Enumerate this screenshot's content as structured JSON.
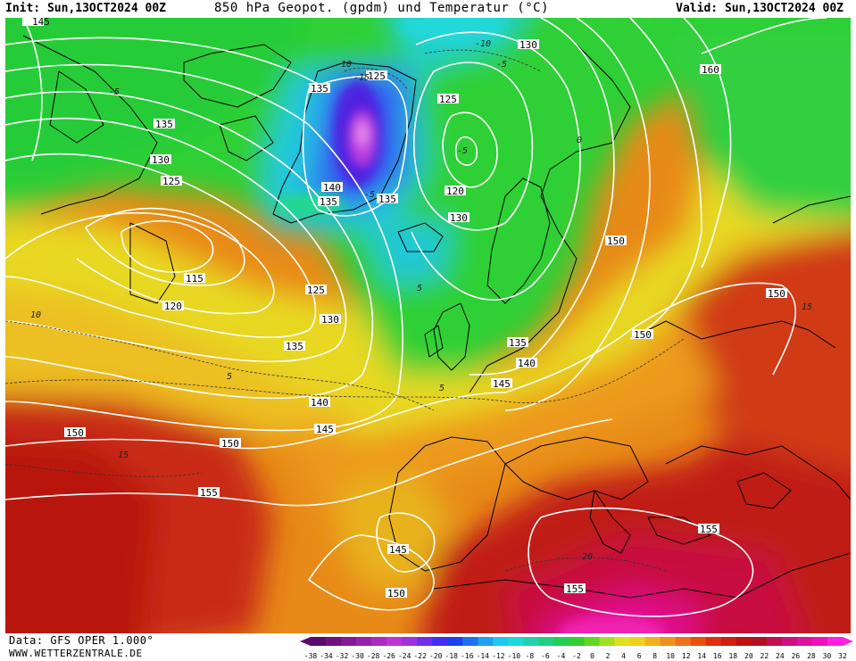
{
  "header": {
    "init": "Init: Sun,13OCT2024 00Z",
    "title": "850 hPa Geopot. (gpdm) und Temperatur (°C)",
    "valid": "Valid: Sun,13OCT2024 00Z"
  },
  "footer": {
    "data_source": "Data: GFS OPER 1.000°",
    "website": "WWW.WETTERZENTRALE.DE"
  },
  "colors": {
    "ocean_green": "#22cc33",
    "land_yellow": "#eedd22",
    "orange": "#f0a020",
    "dark_orange": "#e06010",
    "red": "#c02010",
    "magenta": "#ee1188",
    "cyan": "#22ccdd",
    "blue": "#3344ee"
  },
  "legend": {
    "ticks": [
      "-38",
      "-34",
      "-32",
      "-30",
      "-28",
      "-26",
      "-24",
      "-22",
      "-20",
      "-18",
      "-16",
      "-14",
      "-12",
      "-10",
      "-8",
      "-6",
      "-4",
      "-2",
      "0",
      "2",
      "4",
      "6",
      "8",
      "10",
      "12",
      "14",
      "16",
      "18",
      "20",
      "22",
      "24",
      "26",
      "28",
      "30",
      "32"
    ],
    "colors": [
      "#5a0a6a",
      "#6e1280",
      "#821a96",
      "#9622ac",
      "#aa2ac2",
      "#be32d8",
      "#a030e0",
      "#7030e8",
      "#4030f0",
      "#2040f0",
      "#2070f0",
      "#20a0f0",
      "#20c8f0",
      "#20d8d8",
      "#20d0b0",
      "#20d080",
      "#20d050",
      "#30d030",
      "#60d820",
      "#a0e020",
      "#e0e020",
      "#f0d020",
      "#f0b020",
      "#f09020",
      "#f07020",
      "#e85010",
      "#e03010",
      "#d02010",
      "#c01010",
      "#b01020",
      "#c01050",
      "#d01080",
      "#e010a0",
      "#f010c0",
      "#ff20e0"
    ]
  },
  "map_labels": {
    "geopotential": [
      {
        "text": "145"
      },
      {
        "text": "135"
      },
      {
        "text": "130"
      },
      {
        "text": "125"
      },
      {
        "text": "115"
      },
      {
        "text": "120"
      },
      {
        "text": "125"
      },
      {
        "text": "130"
      },
      {
        "text": "135"
      },
      {
        "text": "140"
      },
      {
        "text": "145"
      },
      {
        "text": "150"
      },
      {
        "text": "150"
      },
      {
        "text": "155"
      },
      {
        "text": "135"
      },
      {
        "text": "125"
      },
      {
        "text": "140"
      },
      {
        "text": "135"
      },
      {
        "text": "135"
      },
      {
        "text": "125"
      },
      {
        "text": "120"
      },
      {
        "text": "130"
      },
      {
        "text": "130"
      },
      {
        "text": "150"
      },
      {
        "text": "135"
      },
      {
        "text": "140"
      },
      {
        "text": "145"
      },
      {
        "text": "150"
      },
      {
        "text": "150"
      },
      {
        "text": "160"
      },
      {
        "text": "145"
      },
      {
        "text": "150"
      },
      {
        "text": "155"
      },
      {
        "text": "155"
      }
    ],
    "temperature": [
      {
        "text": "-10"
      },
      {
        "text": "-15"
      },
      {
        "text": "-10"
      },
      {
        "text": "-5"
      },
      {
        "text": "-5"
      },
      {
        "text": "-5"
      },
      {
        "text": "0"
      },
      {
        "text": "5"
      },
      {
        "text": "5"
      },
      {
        "text": "5"
      },
      {
        "text": "10"
      },
      {
        "text": "15"
      },
      {
        "text": "15"
      },
      {
        "text": "20"
      },
      {
        "text": "-5"
      }
    ]
  }
}
